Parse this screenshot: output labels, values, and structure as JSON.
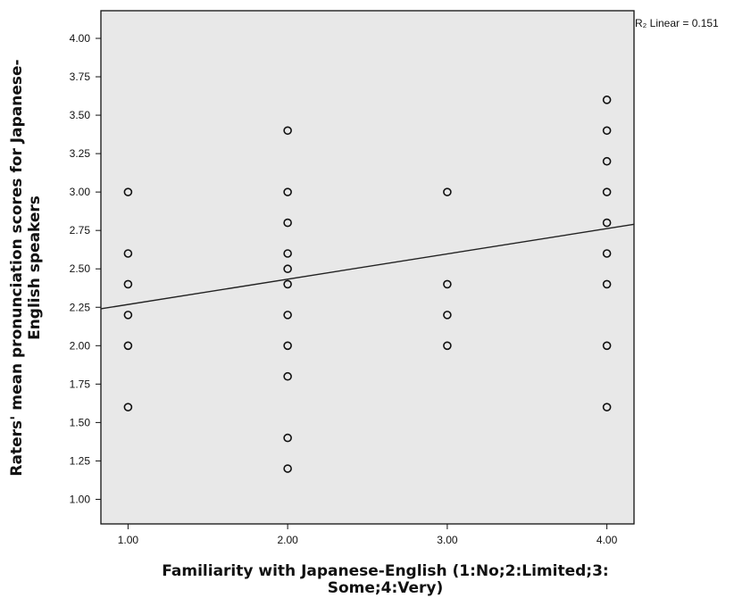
{
  "chart_data": {
    "type": "scatter",
    "title": "",
    "xlabel_lines": [
      "Familiarity with Japanese-English (1:No;2:Limited;3:",
      "Some;4:Very)"
    ],
    "ylabel_lines": [
      "Raters' mean pronunciation scores for Japanese-",
      "English speakers"
    ],
    "x_ticks": [
      "1.00",
      "2.00",
      "3.00",
      "4.00"
    ],
    "y_ticks": [
      "1.00",
      "1.25",
      "1.50",
      "1.75",
      "2.00",
      "2.25",
      "2.50",
      "2.75",
      "3.00",
      "3.25",
      "3.50",
      "3.75",
      "4.00"
    ],
    "xlim": [
      0.83,
      4.17
    ],
    "ylim": [
      0.84,
      4.18
    ],
    "grid": false,
    "fit_line": {
      "label": "R² Linear = 0.151",
      "label_display": "R₂ Linear = 0.151",
      "y_at_xmin": 2.24,
      "y_at_xmax": 2.79
    },
    "points": [
      {
        "x": 1,
        "y": 3.0
      },
      {
        "x": 1,
        "y": 2.6
      },
      {
        "x": 1,
        "y": 2.4
      },
      {
        "x": 1,
        "y": 2.2
      },
      {
        "x": 1,
        "y": 2.0
      },
      {
        "x": 1,
        "y": 1.6
      },
      {
        "x": 2,
        "y": 3.4
      },
      {
        "x": 2,
        "y": 3.0
      },
      {
        "x": 2,
        "y": 2.8
      },
      {
        "x": 2,
        "y": 2.6
      },
      {
        "x": 2,
        "y": 2.5
      },
      {
        "x": 2,
        "y": 2.4
      },
      {
        "x": 2,
        "y": 2.2
      },
      {
        "x": 2,
        "y": 2.0
      },
      {
        "x": 2,
        "y": 1.8
      },
      {
        "x": 2,
        "y": 1.4
      },
      {
        "x": 2,
        "y": 1.2
      },
      {
        "x": 3,
        "y": 3.0
      },
      {
        "x": 3,
        "y": 2.4
      },
      {
        "x": 3,
        "y": 2.2
      },
      {
        "x": 3,
        "y": 2.0
      },
      {
        "x": 4,
        "y": 3.6
      },
      {
        "x": 4,
        "y": 3.4
      },
      {
        "x": 4,
        "y": 3.2
      },
      {
        "x": 4,
        "y": 3.0
      },
      {
        "x": 4,
        "y": 2.8
      },
      {
        "x": 4,
        "y": 2.6
      },
      {
        "x": 4,
        "y": 2.4
      },
      {
        "x": 4,
        "y": 2.0
      },
      {
        "x": 4,
        "y": 1.6
      }
    ],
    "colors": {
      "plot_background": "#e8e8e8",
      "marker": "#111111",
      "line": "#222222"
    }
  }
}
